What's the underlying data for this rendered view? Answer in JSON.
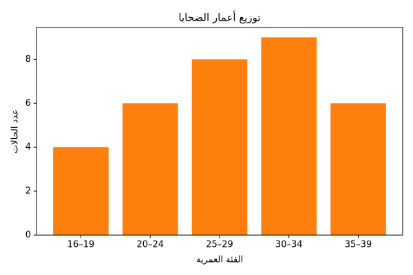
{
  "chart_data": {
    "type": "bar",
    "title": "توزيع أعمار الضحايا",
    "x_label": "الفئة العمرية",
    "y_label": "عدد الحالات",
    "categories": [
      "16–19",
      "20–24",
      "25–29",
      "30–34",
      "35–39"
    ],
    "values": [
      4,
      6,
      8,
      9,
      6
    ],
    "color": "#ff7f0e",
    "ylim": [
      0,
      9.45
    ],
    "yticks": [
      0,
      2,
      4,
      6,
      8
    ],
    "grid": false
  }
}
